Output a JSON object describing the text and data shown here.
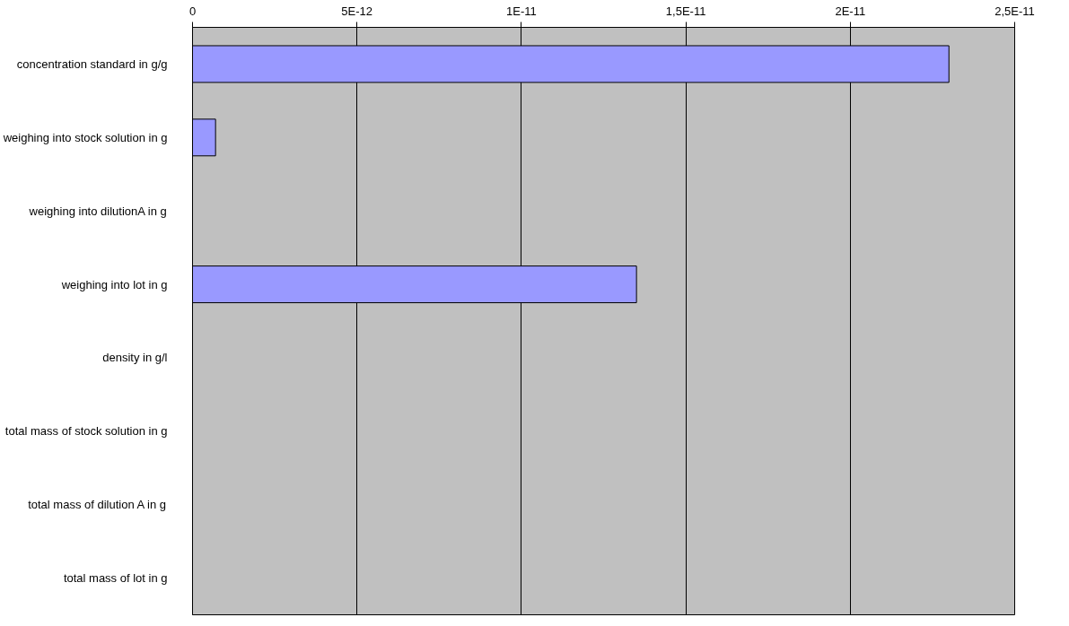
{
  "chart_data": {
    "type": "bar",
    "orientation": "horizontal",
    "categories": [
      "concentration standard in g/g",
      "weighing into stock solution in g",
      "weighing into dilutionA in g",
      "weighing into lot in g",
      "density in g/l",
      "total mass of stock solution in g",
      "total mass of dilution A in g",
      "total mass of lot in g"
    ],
    "values": [
      2.3e-11,
      7e-13,
      null,
      1.35e-11,
      null,
      null,
      null,
      null
    ],
    "color": "#9999ff",
    "xlim": [
      0,
      2.5e-11
    ],
    "xticks": [
      0,
      {
        "value": 5e-12,
        "label": "5E-12"
      },
      {
        "value": 1e-11,
        "label": "1E-11"
      },
      {
        "value": 1.5e-11,
        "label": "1,5E-11"
      },
      {
        "value": 2e-11,
        "label": "2E-11"
      },
      {
        "value": 2.5e-11,
        "label": "2,5E-11"
      }
    ],
    "grid": "x"
  }
}
